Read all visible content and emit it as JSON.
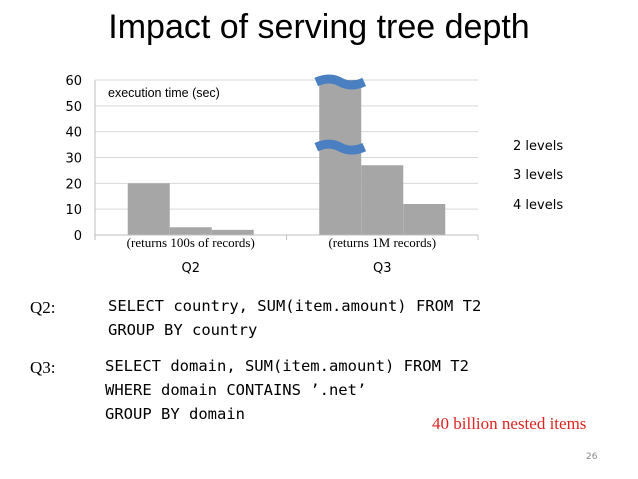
{
  "slide": {
    "title": "Impact of serving tree depth",
    "page_number": "26",
    "note": "40 billion nested items"
  },
  "queries": [
    {
      "label": "Q2:",
      "lines": [
        "SELECT country, SUM(item.amount) FROM T2",
        "GROUP BY country"
      ]
    },
    {
      "label": "Q3:",
      "lines": [
        "SELECT domain, SUM(item.amount) FROM T2",
        "WHERE domain CONTAINS ’.net’",
        "GROUP BY domain"
      ]
    }
  ],
  "chart_data": {
    "type": "bar",
    "ylabel": "execution time (sec)",
    "ylim": [
      0,
      60
    ],
    "yticks": [
      0,
      10,
      20,
      30,
      40,
      50,
      60
    ],
    "grid": true,
    "categories": [
      "Q2",
      "Q3"
    ],
    "category_annotations": [
      "(returns 100s of records)",
      "(returns 1M records)"
    ],
    "series": [
      {
        "name": "2 levels",
        "values": [
          20,
          60
        ],
        "axis_break": [
          false,
          true
        ]
      },
      {
        "name": "3 levels",
        "values": [
          3,
          27
        ],
        "axis_break": [
          false,
          false
        ]
      },
      {
        "name": "4 levels",
        "values": [
          2,
          12
        ],
        "axis_break": [
          false,
          false
        ]
      }
    ],
    "legend_position": "right",
    "colors": {
      "bar": "#a6a6a6",
      "grid": "#d9d9d9",
      "axis": "#bfbfbf",
      "break_mark": "#4a7fc1"
    }
  }
}
